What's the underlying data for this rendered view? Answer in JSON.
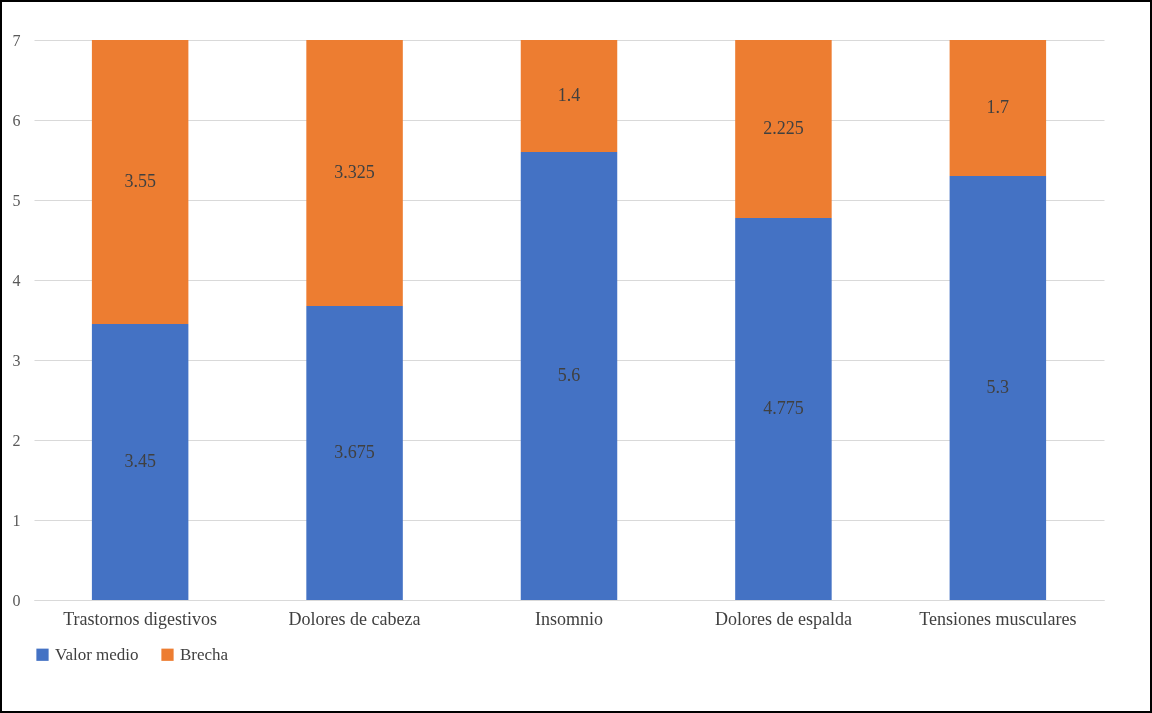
{
  "chart_data": {
    "type": "bar",
    "stacked": true,
    "categories": [
      "Trastornos digestivos",
      "Dolores de cabeza",
      "Insomnio",
      "Dolores de espalda",
      "Tensiones musculares"
    ],
    "series": [
      {
        "name": "Valor medio",
        "color": "#4472c4",
        "values": [
          3.45,
          3.675,
          5.6,
          4.775,
          5.3
        ]
      },
      {
        "name": "Brecha",
        "color": "#ed7d31",
        "values": [
          3.55,
          3.325,
          1.4,
          2.225,
          1.7
        ]
      }
    ],
    "ylim": [
      0,
      7
    ],
    "yticks": [
      0,
      1,
      2,
      3,
      4,
      5,
      6,
      7
    ],
    "grid": "y",
    "legend": "bottom",
    "data_labels": true
  }
}
